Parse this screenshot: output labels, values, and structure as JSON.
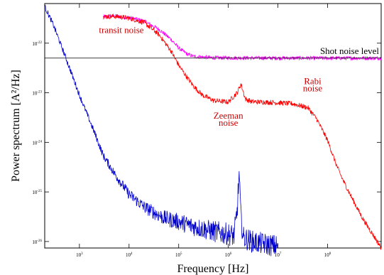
{
  "chart_data": {
    "type": "line",
    "xlabel": "Frequency [Hz]",
    "ylabel": "Power spectrum [A²/Hz]",
    "x_scale": "log",
    "y_scale": "log",
    "xlim": [
      200,
      1200000000
    ],
    "ylim": [
      7.4e-27,
      6.3e-22
    ],
    "x_ticks": [
      {
        "value": 1000,
        "base": "10",
        "exp": "3"
      },
      {
        "value": 10000,
        "base": "10",
        "exp": "4"
      },
      {
        "value": 100000,
        "base": "10",
        "exp": "5"
      },
      {
        "value": 1000000,
        "base": "10",
        "exp": "6"
      },
      {
        "value": 10000000,
        "base": "10",
        "exp": "7"
      },
      {
        "value": 100000000,
        "base": "10",
        "exp": "8"
      }
    ],
    "y_ticks": [
      {
        "value": 1e-22,
        "base": "10",
        "exp": "-22"
      },
      {
        "value": 1e-23,
        "base": "10",
        "exp": "-23"
      },
      {
        "value": 1e-24,
        "base": "10",
        "exp": "-24"
      },
      {
        "value": 1e-25,
        "base": "10",
        "exp": "-25"
      },
      {
        "value": 1e-26,
        "base": "10",
        "exp": "-26"
      }
    ],
    "reference_line": {
      "label": "Shot noise level",
      "y": 5e-23,
      "color": "#000000"
    },
    "series": [
      {
        "color": "#ff00ff",
        "x": [
          3000,
          5000,
          10000,
          20000,
          40000,
          70000,
          100000,
          150000,
          200000,
          500000,
          1000000,
          10000000,
          100000000,
          1200000000
        ],
        "y": [
          3.4e-22,
          3.5e-22,
          3.3e-22,
          2.8e-22,
          1.9e-22,
          1.2e-22,
          8e-23,
          6e-23,
          5.4e-23,
          5.1e-23,
          5.05e-23,
          5e-23,
          5e-23,
          5e-23
        ]
      },
      {
        "color": "#ff0000",
        "x": [
          3000,
          5000,
          10000,
          20000,
          40000,
          70000,
          100000,
          150000,
          200000,
          300000,
          500000,
          1000000,
          1500000,
          1800000,
          2200000,
          3000000,
          5000000,
          10000000,
          20000000,
          40000000,
          60000000,
          100000000,
          150000000,
          200000000,
          300000000,
          500000000,
          1200000000
        ],
        "y": [
          3.4e-22,
          3.5e-22,
          3.2e-22,
          2.6e-22,
          1.5e-22,
          7e-23,
          3.6e-23,
          2e-23,
          1.35e-23,
          9e-24,
          7e-24,
          6.5e-24,
          1e-23,
          1.5e-23,
          7.5e-24,
          6.6e-24,
          6.5e-24,
          6.3e-24,
          6e-24,
          5e-24,
          3e-24,
          1.1e-24,
          3.5e-25,
          1.8e-25,
          8e-26,
          3e-26,
          7.5e-27
        ]
      },
      {
        "color": "#0000cc",
        "x": [
          200,
          300,
          500,
          700,
          1000,
          2000,
          3000,
          5000,
          10000,
          20000,
          50000,
          100000,
          200000,
          500000,
          1000000,
          1300000,
          1500000,
          1650000,
          1800000,
          2000000,
          3000000,
          5000000,
          7000000,
          10000000
        ],
        "y": [
          5.5e-22,
          2.3e-22,
          6e-23,
          2.4e-23,
          9e-24,
          1.6e-24,
          5.5e-25,
          2.4e-25,
          9e-26,
          5e-26,
          3e-26,
          2.5e-26,
          2e-26,
          1.6e-26,
          1.4e-26,
          1.3e-26,
          4e-26,
          2.2e-25,
          3e-26,
          1.2e-26,
          1e-26,
          9e-27,
          8.5e-27,
          8e-27
        ]
      }
    ],
    "annotations": [
      {
        "lines": [
          "transit noise"
        ],
        "color": "#cc0000",
        "x": 7000,
        "y": 1.6e-22
      },
      {
        "lines": [
          "Zeeman",
          "noise"
        ],
        "color": "#cc0000",
        "x": 1000000,
        "y": 3e-24
      },
      {
        "lines": [
          "Rabi",
          "noise"
        ],
        "color": "#cc0000",
        "x": 50000000,
        "y": 1.5e-23
      }
    ],
    "grid": false,
    "legend": "none"
  }
}
